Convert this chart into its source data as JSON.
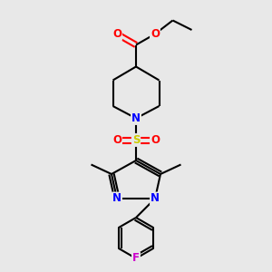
{
  "bg_color": "#e8e8e8",
  "bond_color": "#000000",
  "bond_width": 1.5,
  "atom_colors": {
    "O": "#ff0000",
    "N": "#0000ff",
    "S": "#cccc00",
    "F": "#cc00cc",
    "C": "#000000"
  },
  "font_size": 8.5,
  "fig_width": 3.0,
  "fig_height": 3.0,
  "dpi": 100,
  "xlim": [
    0,
    10
  ],
  "ylim": [
    0,
    10
  ]
}
